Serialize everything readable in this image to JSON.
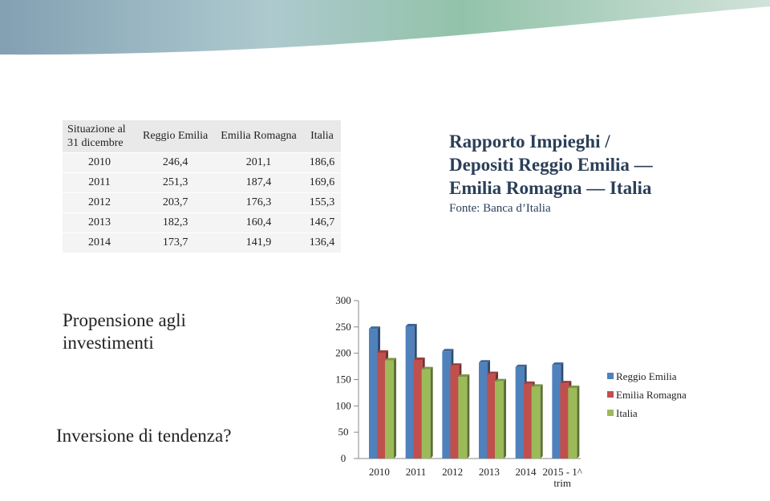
{
  "header": {
    "title_lines": [
      "Rapporto Impieghi /",
      "Depositi Reggio Emilia —",
      "Emilia Romagna — Italia"
    ],
    "source": "Fonte: Banca d’Italia"
  },
  "table": {
    "columns": [
      "Situazione al 31 dicembre",
      "Reggio Emilia",
      "Emilia Romagna",
      "Italia"
    ],
    "rows": [
      [
        "2010",
        "246,4",
        "201,1",
        "186,6"
      ],
      [
        "2011",
        "251,3",
        "187,4",
        "169,6"
      ],
      [
        "2012",
        "203,7",
        "176,3",
        "155,3"
      ],
      [
        "2013",
        "182,3",
        "160,4",
        "146,7"
      ],
      [
        "2014",
        "173,7",
        "141,9",
        "136,4"
      ]
    ]
  },
  "notes": [
    "Propensione agli investimenti",
    "Inversione di tendenza?"
  ],
  "chart_data": {
    "type": "bar",
    "categories": [
      "2010",
      "2011",
      "2012",
      "2013",
      "2014",
      "2015 - 1^ trim"
    ],
    "series": [
      {
        "name": "Reggio Emilia",
        "color": "#4f81bd",
        "values": [
          246.4,
          251.3,
          203.7,
          182.3,
          173.7,
          178
        ]
      },
      {
        "name": "Emilia Romagna",
        "color": "#c0504d",
        "values": [
          201.1,
          187.4,
          176.3,
          160.4,
          141.9,
          143
        ]
      },
      {
        "name": "Italia",
        "color": "#9bbb59",
        "values": [
          186.6,
          169.6,
          155.3,
          146.7,
          136.4,
          134
        ]
      }
    ],
    "ylim": [
      0,
      300
    ],
    "yticks": [
      0,
      50,
      100,
      150,
      200,
      250,
      300
    ],
    "grid": false,
    "legend": "right"
  }
}
